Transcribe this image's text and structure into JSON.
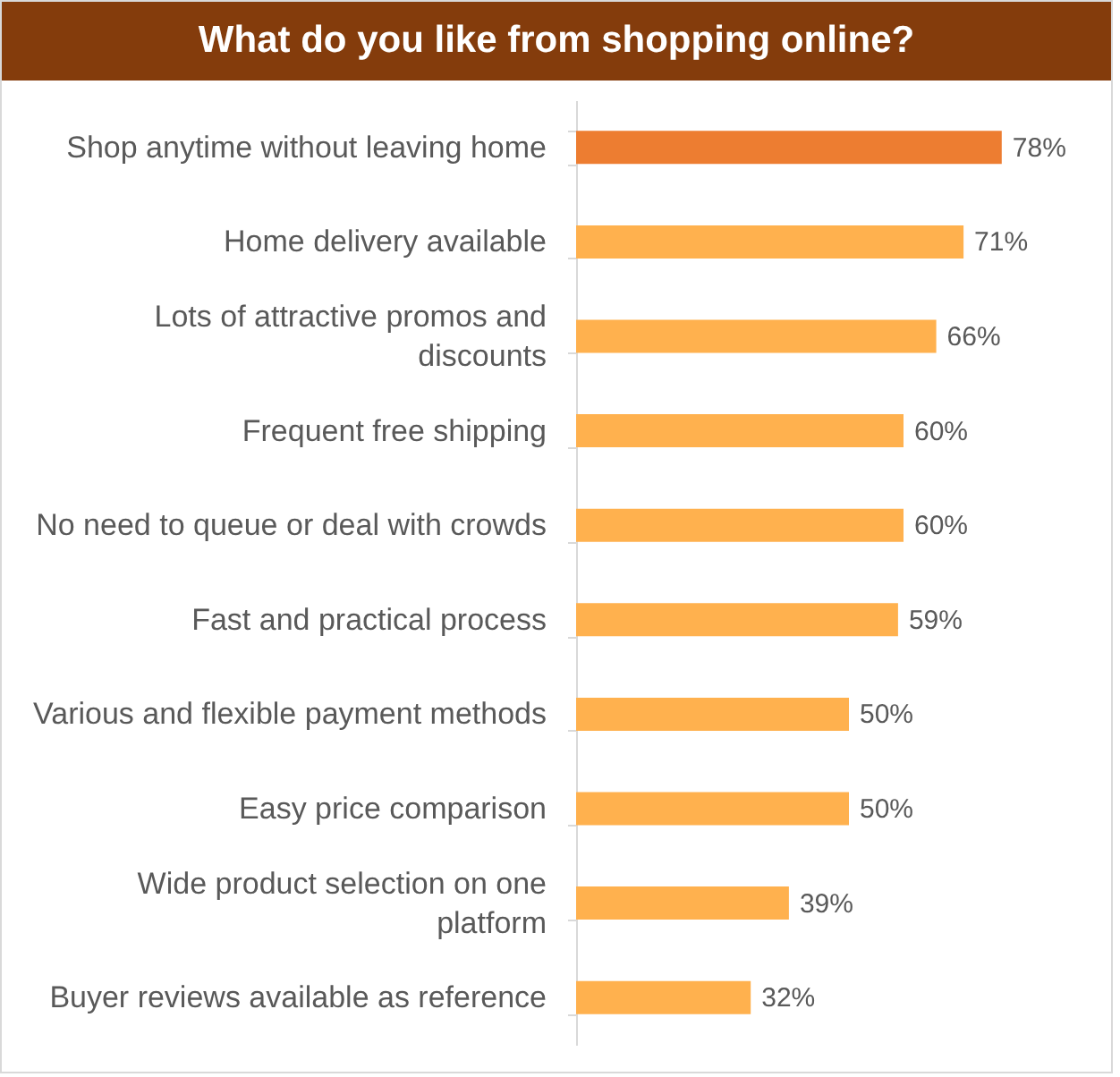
{
  "chart_data": {
    "type": "bar",
    "orientation": "horizontal",
    "title": "What do you like from shopping online?",
    "categories": [
      "Shop anytime without leaving home",
      "Home delivery available",
      "Lots of attractive promos and discounts",
      "Frequent free shipping",
      "No need to queue or deal with crowds",
      "Fast and practical process",
      "Various and flexible payment methods",
      "Easy price comparison",
      "Wide product selection on one platform",
      "Buyer reviews available as reference"
    ],
    "values": [
      78,
      71,
      66,
      60,
      60,
      59,
      50,
      50,
      39,
      32
    ],
    "colors": [
      "#ed7d31",
      "#ffb14e",
      "#ffb14e",
      "#ffb14e",
      "#ffb14e",
      "#ffb14e",
      "#ffb14e",
      "#ffb14e",
      "#ffb14e",
      "#ffb14e"
    ],
    "value_labels": [
      "78%",
      "71%",
      "66%",
      "60%",
      "60%",
      "59%",
      "50%",
      "50%",
      "39%",
      "32%"
    ]
  }
}
